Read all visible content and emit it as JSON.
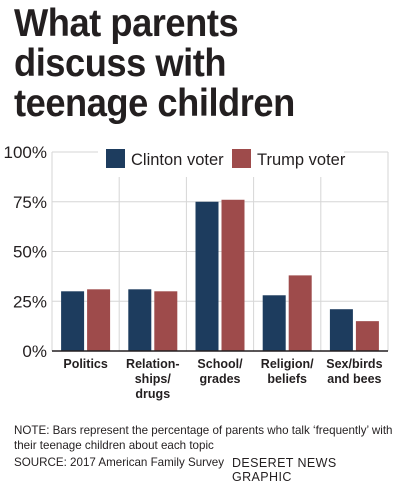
{
  "title_lines": [
    "What parents",
    "discuss with",
    "teenage children"
  ],
  "note": "NOTE: Bars represent the percentage of parents who talk ‘frequently’ with their teenage children about each topic",
  "source": "SOURCE: 2017 American Family Survey",
  "credit": "DESERET NEWS GRAPHIC",
  "colors": {
    "clinton": "#1d3c5e",
    "trump": "#9e4b4b",
    "grid": "#d6d6d6",
    "axis": "#231f20"
  },
  "chart_data": {
    "type": "bar",
    "title": "What parents discuss with teenage children",
    "categories": [
      [
        "Politics"
      ],
      [
        "Relation-",
        "ships/",
        "drugs"
      ],
      [
        "School/",
        "grades"
      ],
      [
        "Religion/",
        "beliefs"
      ],
      [
        "Sex/birds",
        "and bees"
      ]
    ],
    "series": [
      {
        "name": "Clinton voter",
        "values": [
          30,
          31,
          75,
          28,
          21
        ]
      },
      {
        "name": "Trump voter",
        "values": [
          31,
          30,
          76,
          38,
          15
        ]
      }
    ],
    "yticks": [
      "0%",
      "25%",
      "50%",
      "75%",
      "100%"
    ],
    "ylim": [
      0,
      100
    ],
    "grid": true,
    "legend_position": "top-right"
  }
}
